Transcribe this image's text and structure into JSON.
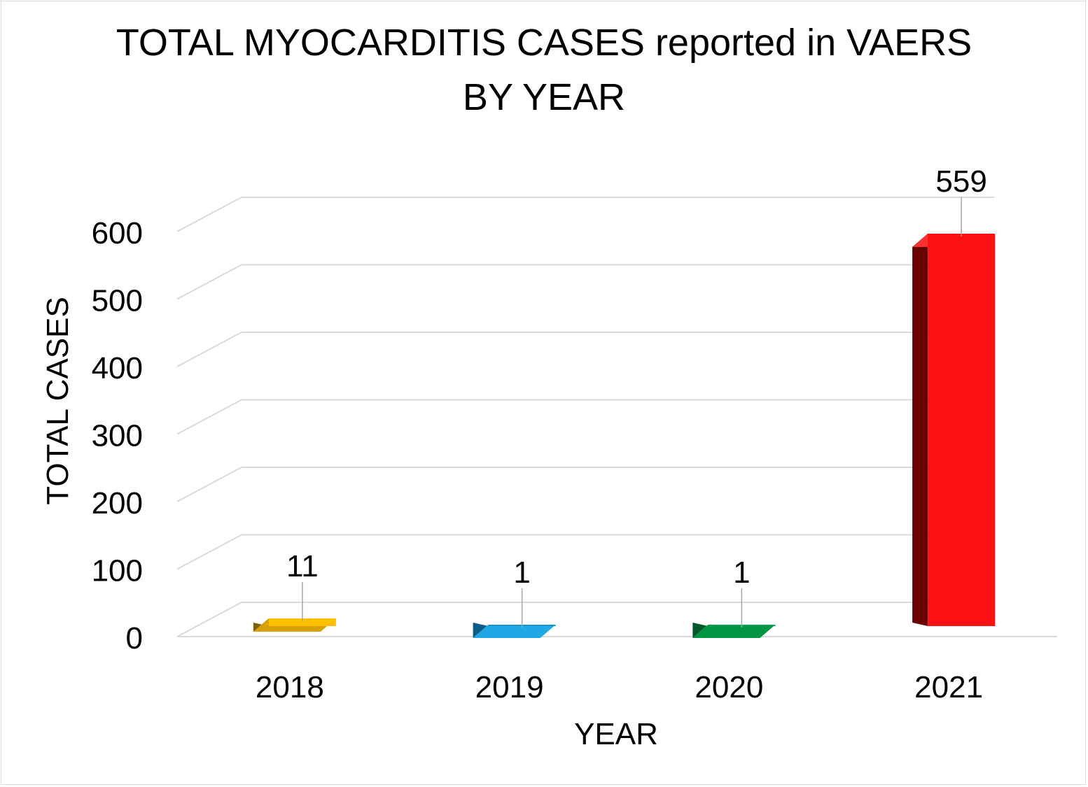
{
  "chart_data": {
    "type": "bar",
    "title_line1": "TOTAL MYOCARDITIS CASES reported in VAERS",
    "title_line2": "BY YEAR",
    "xlabel": "YEAR",
    "ylabel": "TOTAL CASES",
    "categories": [
      "2018",
      "2019",
      "2020",
      "2021"
    ],
    "values": [
      11,
      1,
      1,
      559
    ],
    "data_labels": [
      "11",
      "1",
      "1",
      "559"
    ],
    "ylim": [
      0,
      600
    ],
    "yticks": [
      0,
      100,
      200,
      300,
      400,
      500,
      600
    ],
    "grid": true,
    "legend": "none",
    "bar_colors": [
      {
        "front": "#ffc000",
        "top": "#d6a000",
        "side": "#7f6000"
      },
      {
        "front": "#1592d1",
        "top": "#1fa7e6",
        "side": "#0b5c86"
      },
      {
        "front": "#00a14b",
        "top": "#009443",
        "side": "#005a2a"
      },
      {
        "front": "#ff1010",
        "top": "#ff3030",
        "side": "#6b0000"
      }
    ],
    "grid_color": "#d9d9d9"
  }
}
